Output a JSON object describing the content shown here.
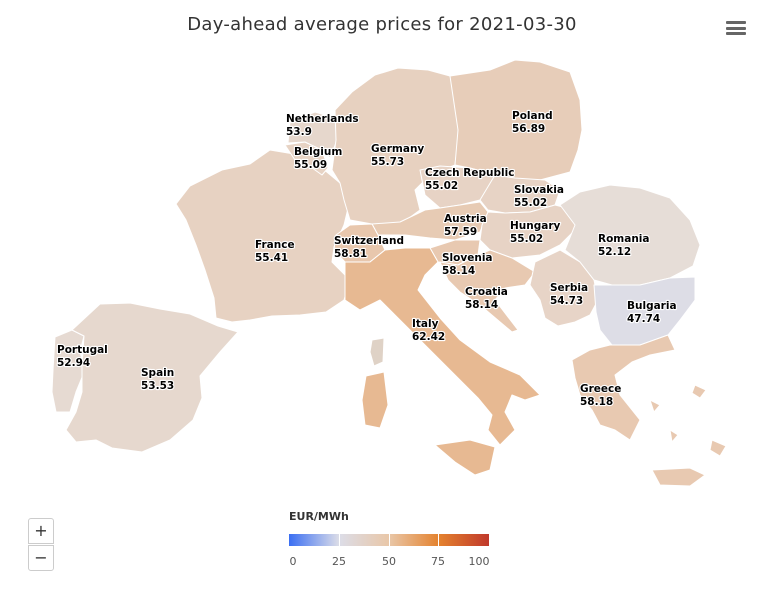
{
  "title": "Day-ahead average prices for 2021-03-30",
  "menu": {
    "icon": "hamburger-menu-icon"
  },
  "zoom": {
    "in_label": "+",
    "out_label": "−"
  },
  "legend": {
    "title": "EUR/MWh",
    "min": 0,
    "max": 100,
    "ticks": [
      "0",
      "25",
      "50",
      "75",
      "100"
    ],
    "colors": [
      "#3b6ff2",
      "#dcdde8",
      "#e9c7a8",
      "#e4822e",
      "#c0392b"
    ]
  },
  "countries": [
    {
      "name": "Netherlands",
      "value": "53.9"
    },
    {
      "name": "Belgium",
      "value": "55.09"
    },
    {
      "name": "Germany",
      "value": "55.73"
    },
    {
      "name": "Poland",
      "value": "56.89"
    },
    {
      "name": "Czech Republic",
      "value": "55.02"
    },
    {
      "name": "Slovakia",
      "value": "55.02"
    },
    {
      "name": "Austria",
      "value": "57.59"
    },
    {
      "name": "Hungary",
      "value": "55.02"
    },
    {
      "name": "France",
      "value": "55.41"
    },
    {
      "name": "Switzerland",
      "value": "58.81"
    },
    {
      "name": "Slovenia",
      "value": "58.14"
    },
    {
      "name": "Romania",
      "value": "52.12"
    },
    {
      "name": "Croatia",
      "value": "58.14"
    },
    {
      "name": "Serbia",
      "value": "54.73"
    },
    {
      "name": "Bulgaria",
      "value": "47.74"
    },
    {
      "name": "Italy",
      "value": "62.42"
    },
    {
      "name": "Portugal",
      "value": "52.94"
    },
    {
      "name": "Spain",
      "value": "53.53"
    },
    {
      "name": "Greece",
      "value": "58.18"
    }
  ]
}
